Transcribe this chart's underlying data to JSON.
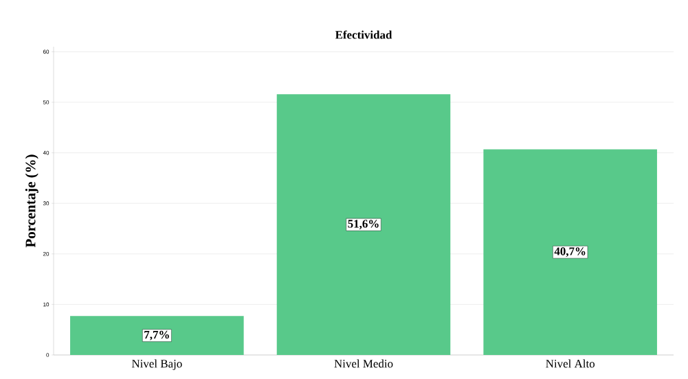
{
  "chart_data": {
    "type": "bar",
    "title": "Efectividad",
    "ylabel": "Porcentaje (%)",
    "categories": [
      "Nivel Bajo",
      "Nivel Medio",
      "Nivel Alto"
    ],
    "values": [
      7.7,
      51.6,
      40.7
    ],
    "value_labels": [
      "7,7%",
      "51,6%",
      "40,7%"
    ],
    "color": "#58c98a",
    "ylim": [
      0,
      61
    ],
    "yticks": [
      0,
      10,
      20,
      30,
      40,
      50,
      60
    ],
    "grid": "y"
  }
}
